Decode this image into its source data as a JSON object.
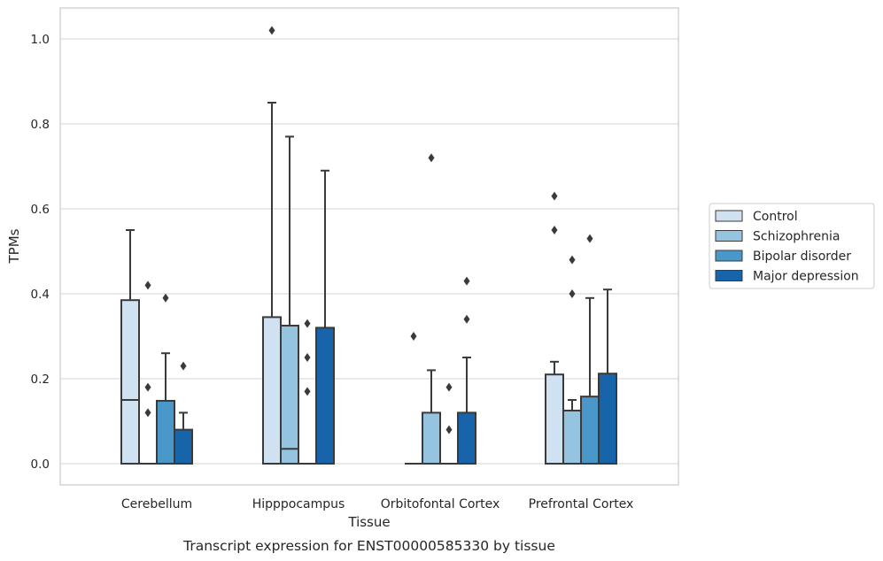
{
  "chart_data": {
    "type": "box",
    "title": "Transcript expression for ENST00000585330 by tissue",
    "xlabel": "Tissue",
    "ylabel": "TPMs",
    "ylim": [
      -0.05,
      1.07
    ],
    "yticks": [
      0.0,
      0.2,
      0.4,
      0.6,
      0.8,
      1.0
    ],
    "ytick_labels": [
      "0.0",
      "0.2",
      "0.4",
      "0.6",
      "0.8",
      "1.0"
    ],
    "grid": true,
    "legend_position": "right",
    "categories": [
      "Cerebellum",
      "Hipppocampus",
      "Orbitofontal Cortex",
      "Prefrontal Cortex"
    ],
    "series": [
      {
        "name": "Control",
        "color": "#d0e1f2",
        "boxes": [
          {
            "q1": 0.0,
            "median": 0.15,
            "q3": 0.385,
            "whisker_low": 0.0,
            "whisker_high": 0.55,
            "outliers": []
          },
          {
            "q1": 0.0,
            "median": 0.0,
            "q3": 0.345,
            "whisker_low": 0.0,
            "whisker_high": 0.85,
            "outliers": [
              1.02
            ]
          },
          {
            "q1": 0.0,
            "median": 0.0,
            "q3": 0.0,
            "whisker_low": 0.0,
            "whisker_high": 0.0,
            "outliers": [
              0.3
            ]
          },
          {
            "q1": 0.0,
            "median": 0.0,
            "q3": 0.21,
            "whisker_low": 0.0,
            "whisker_high": 0.24,
            "outliers": [
              0.55,
              0.63
            ]
          }
        ]
      },
      {
        "name": "Schizophrenia",
        "color": "#94c4df",
        "boxes": [
          {
            "q1": 0.0,
            "median": 0.0,
            "q3": 0.0,
            "whisker_low": 0.0,
            "whisker_high": 0.0,
            "outliers": [
              0.12,
              0.18,
              0.42
            ]
          },
          {
            "q1": 0.0,
            "median": 0.035,
            "q3": 0.325,
            "whisker_low": 0.0,
            "whisker_high": 0.77,
            "outliers": []
          },
          {
            "q1": 0.0,
            "median": 0.0,
            "q3": 0.12,
            "whisker_low": 0.0,
            "whisker_high": 0.22,
            "outliers": [
              0.72
            ]
          },
          {
            "q1": 0.0,
            "median": 0.0,
            "q3": 0.125,
            "whisker_low": 0.0,
            "whisker_high": 0.15,
            "outliers": [
              0.4,
              0.48
            ]
          }
        ]
      },
      {
        "name": "Bipolar disorder",
        "color": "#4a98c9",
        "boxes": [
          {
            "q1": 0.0,
            "median": 0.0,
            "q3": 0.148,
            "whisker_low": 0.0,
            "whisker_high": 0.26,
            "outliers": [
              0.39
            ]
          },
          {
            "q1": 0.0,
            "median": 0.0,
            "q3": 0.0,
            "whisker_low": 0.0,
            "whisker_high": 0.0,
            "outliers": [
              0.17,
              0.25,
              0.33
            ]
          },
          {
            "q1": 0.0,
            "median": 0.0,
            "q3": 0.0,
            "whisker_low": 0.0,
            "whisker_high": 0.0,
            "outliers": [
              0.08,
              0.18
            ]
          },
          {
            "q1": 0.0,
            "median": 0.0,
            "q3": 0.158,
            "whisker_low": 0.0,
            "whisker_high": 0.39,
            "outliers": [
              0.53
            ]
          }
        ]
      },
      {
        "name": "Major depression",
        "color": "#1764ab",
        "boxes": [
          {
            "q1": 0.0,
            "median": 0.0,
            "q3": 0.08,
            "whisker_low": 0.0,
            "whisker_high": 0.12,
            "outliers": [
              0.23
            ]
          },
          {
            "q1": 0.0,
            "median": 0.0,
            "q3": 0.32,
            "whisker_low": 0.0,
            "whisker_high": 0.69,
            "outliers": []
          },
          {
            "q1": 0.0,
            "median": 0.0,
            "q3": 0.12,
            "whisker_low": 0.0,
            "whisker_high": 0.25,
            "outliers": [
              0.34,
              0.43
            ]
          },
          {
            "q1": 0.0,
            "median": 0.0,
            "q3": 0.212,
            "whisker_low": 0.0,
            "whisker_high": 0.41,
            "outliers": []
          }
        ]
      }
    ]
  }
}
